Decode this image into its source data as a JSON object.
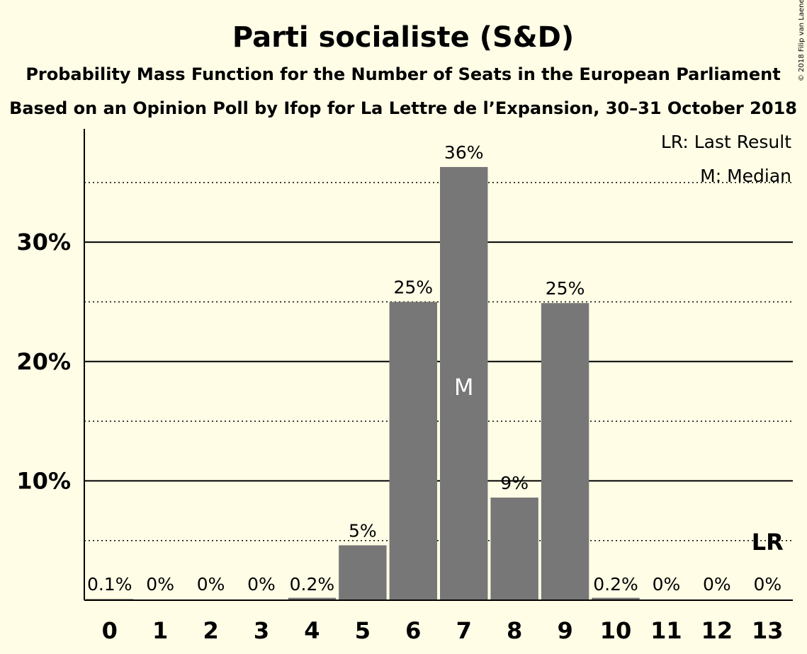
{
  "title": "Parti socialiste (S&D)",
  "subtitle1": "Probability Mass Function for the Number of Seats in the European Parliament",
  "subtitle2": "Based on an Opinion Poll by Ifop for La Lettre de l’Expansion, 30–31 October 2018",
  "copyright": "© 2018 Filip van Laenen",
  "legend": {
    "lr": "LR: Last Result",
    "m": "M: Median"
  },
  "median_marker": "M",
  "last_result_marker": "LR",
  "colors": {
    "background": "#fffde6",
    "bar": "#777777",
    "median_text": "#ffffff"
  },
  "chart_data": {
    "type": "bar",
    "categories": [
      "0",
      "1",
      "2",
      "3",
      "4",
      "5",
      "6",
      "7",
      "8",
      "9",
      "10",
      "11",
      "12",
      "13"
    ],
    "values": [
      0.1,
      0,
      0,
      0,
      0.2,
      4.6,
      25.0,
      36.3,
      8.6,
      24.9,
      0.2,
      0,
      0,
      0
    ],
    "data_labels": [
      "0.1%",
      "0%",
      "0%",
      "0%",
      "0.2%",
      "5%",
      "25%",
      "36%",
      "9%",
      "25%",
      "0.2%",
      "0%",
      "0%",
      "0%"
    ],
    "median_seat": "7",
    "last_result_seat": "13",
    "ylim": [
      0,
      39.5
    ],
    "yticks": [
      10,
      20,
      30
    ],
    "ytick_labels": [
      "10%",
      "20%",
      "30%"
    ],
    "minor_gridlines": [
      5,
      15,
      25,
      35
    ],
    "xlabel": "",
    "ylabel": ""
  }
}
